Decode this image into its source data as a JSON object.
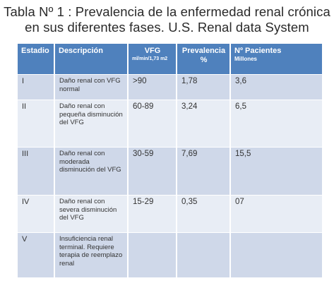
{
  "title": {
    "line1": "Tabla Nº 1 : Prevalencia de la enfermedad renal crónica",
    "line2": "en sus diferentes fases. U.S. Renal data System"
  },
  "table": {
    "headers": {
      "stage": "Estadio",
      "description": "Descripción",
      "gfr": "VFG",
      "gfr_unit": "ml/min/1,73 m2",
      "prevalence": "Prevalencia",
      "prevalence_unit": "%",
      "patients": "Nº Pacientes",
      "patients_unit": "Millones"
    },
    "rows": [
      {
        "stage": "I",
        "description": "Daño renal con VFG normal",
        "gfr": ">90",
        "prevalence": "1,78",
        "patients": "3,6"
      },
      {
        "stage": "II",
        "description": "Daño renal con pequeña disminución del VFG",
        "gfr": "60-89",
        "prevalence": "3,24",
        "patients": "6,5"
      },
      {
        "stage": "III",
        "description": "Daño renal con moderada disminución del VFG",
        "gfr": "30-59",
        "prevalence": "7,69",
        "patients": "15,5"
      },
      {
        "stage": "IV",
        "description": "Daño renal con severa disminución del VFG",
        "gfr": "15-29",
        "prevalence": "0,35",
        "patients": "07"
      },
      {
        "stage": "V",
        "description": "Insuficiencia renal terminal. Requiere terapia de reemplazo renal",
        "gfr": "",
        "prevalence": "",
        "patients": ""
      }
    ]
  },
  "colors": {
    "header_bg": "#4f81bd",
    "row_odd_bg": "#cfd8e9",
    "row_even_bg": "#e8edf5",
    "title_text": "#2a2a2a"
  }
}
